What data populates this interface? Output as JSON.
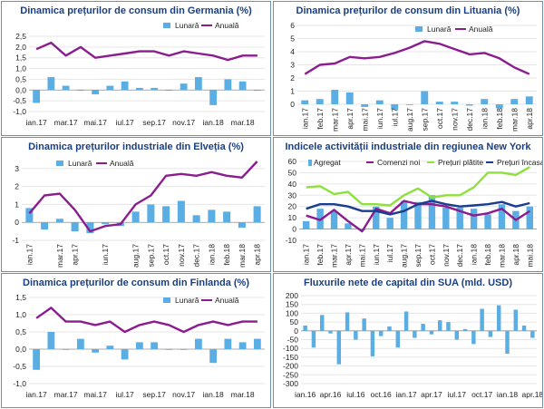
{
  "colors": {
    "bar": "#5aaee3",
    "line": "#8b1d8f",
    "lime": "#8ee03a",
    "navy": "#1a3d8f",
    "title": "#1a3f82"
  },
  "chart_data": [
    {
      "id": "germany",
      "type": "bar+line",
      "title": "Dinamica prețurilor de consum din Germania (%)",
      "ylim": [
        -1.0,
        2.5
      ],
      "yticks": [
        "-1,0",
        "-0,5",
        "0,0",
        "0,5",
        "1,0",
        "1,5",
        "2,0",
        "2,5"
      ],
      "categories": [
        "ian.17",
        "feb.17",
        "mar.17",
        "apr.17",
        "mai.17",
        "iun.17",
        "iul.17",
        "aug.17",
        "sep.17",
        "oct.17",
        "nov.17",
        "dec.17",
        "ian.18",
        "feb.18",
        "mar.18",
        "apr.18"
      ],
      "xlabels": [
        "ian.17",
        "mar.17",
        "mai.17",
        "iul.17",
        "sep.17",
        "nov.17",
        "ian.18",
        "mar.18"
      ],
      "legend_position": "top-right",
      "series": [
        {
          "name": "Lunară",
          "type": "bar",
          "values": [
            -0.6,
            0.6,
            0.2,
            0.0,
            -0.2,
            0.2,
            0.4,
            0.1,
            0.1,
            0.0,
            0.3,
            0.6,
            -0.7,
            0.5,
            0.4,
            0.0
          ]
        },
        {
          "name": "Anuală",
          "type": "line",
          "values": [
            1.9,
            2.2,
            1.6,
            2.0,
            1.5,
            1.6,
            1.7,
            1.8,
            1.8,
            1.6,
            1.8,
            1.7,
            1.6,
            1.4,
            1.6,
            1.6
          ]
        }
      ]
    },
    {
      "id": "lithuania",
      "type": "bar+line",
      "title": "Dinamica prețurilor de consum din Lituania (%)",
      "ylim": [
        0,
        6
      ],
      "yticks": [
        "0",
        "1",
        "2",
        "3",
        "4",
        "5",
        "6"
      ],
      "categories": [
        "ian.17",
        "feb.17",
        "mar.17",
        "apr.17",
        "mai.17",
        "iun.17",
        "iul.17",
        "aug.17",
        "sep.17",
        "oct.17",
        "nov.17",
        "dec.17",
        "ian.18",
        "feb.18",
        "mar.18",
        "apr.18"
      ],
      "xlabels": [
        "ian.17",
        "feb.17",
        "mar.17",
        "apr.17",
        "mai.17",
        "iun.17",
        "iul.17",
        "aug.17",
        "sep.17",
        "oct.17",
        "nov.17",
        "dec.17",
        "ian.18",
        "feb.18",
        "mar.18",
        "apr.18"
      ],
      "xrotate": true,
      "legend_position": "top-right",
      "series": [
        {
          "name": "Lunară",
          "type": "bar",
          "values": [
            0.3,
            0.4,
            1.1,
            0.9,
            -0.2,
            0.3,
            -0.4,
            0.0,
            1.0,
            0.2,
            0.2,
            -0.1,
            0.4,
            -0.3,
            0.4,
            0.6
          ]
        },
        {
          "name": "Anuală",
          "type": "line",
          "values": [
            2.3,
            3.0,
            3.1,
            3.6,
            3.5,
            3.6,
            3.9,
            4.3,
            4.8,
            4.6,
            4.2,
            3.8,
            3.9,
            3.5,
            2.8,
            2.3
          ]
        }
      ]
    },
    {
      "id": "switzerland",
      "type": "bar+line",
      "title": "Dinamica prețurilor industriale din Elveția (%)",
      "ylim": [
        -1,
        3.6
      ],
      "yticks": [
        "-1",
        "0",
        "1",
        "2",
        "3"
      ],
      "categories": [
        "ian.17",
        "feb.17",
        "mar.17",
        "apr.17",
        "mai.17",
        "iun.17",
        "iul.17",
        "aug.17",
        "sep.17",
        "oct.17",
        "nov.17",
        "dec.17",
        "ian.18",
        "feb.18",
        "mar.18",
        "apr.18"
      ],
      "xlabels": [
        "ian.17",
        "mar.17",
        "apr.17",
        "iun.17",
        "aug.17",
        "sep.17",
        "oct.17",
        "nov.17",
        "dec.17",
        "ian.18",
        "feb.18",
        "mar.18",
        "apr.18"
      ],
      "xrotate": true,
      "legend_position": "top-left",
      "series": [
        {
          "name": "Lunară",
          "type": "bar",
          "values": [
            0.8,
            -0.4,
            0.2,
            -0.5,
            -0.6,
            -0.1,
            -0.2,
            0.6,
            1.0,
            0.9,
            1.2,
            0.4,
            0.7,
            0.6,
            -0.3,
            0.9
          ]
        },
        {
          "name": "Anuală",
          "type": "line",
          "values": [
            0.5,
            1.5,
            1.6,
            0.7,
            -0.5,
            -0.2,
            -0.1,
            1.0,
            1.5,
            2.6,
            2.7,
            2.6,
            2.8,
            2.6,
            2.5,
            3.4
          ]
        }
      ]
    },
    {
      "id": "newyork",
      "type": "bar+line",
      "title": "Indicele activității industriale din regiunea New York",
      "ylim": [
        -10,
        60
      ],
      "yticks": [
        "-10",
        "0",
        "10",
        "20",
        "30",
        "40",
        "50",
        "60"
      ],
      "categories": [
        "ian.17",
        "feb.17",
        "mar.17",
        "apr.17",
        "mai.17",
        "iun.17",
        "iul.17",
        "aug.17",
        "sep.17",
        "oct.17",
        "nov.17",
        "dec.17",
        "ian.18",
        "feb.18",
        "mar.18",
        "apr.18",
        "mai.18"
      ],
      "xlabels": [
        "ian.17",
        "feb.17",
        "mar.17",
        "apr.17",
        "mai.17",
        "iun.17",
        "iul.17",
        "aug.17",
        "sep.17",
        "oct.17",
        "nov.17",
        "dec.17",
        "ian.18",
        "feb.18",
        "mar.18",
        "apr.18",
        "mai.18"
      ],
      "xrotate": true,
      "legend_position": "top",
      "series": [
        {
          "name": "Agregat",
          "type": "bar",
          "values": [
            7,
            18,
            16,
            5,
            -1,
            20,
            10,
            25,
            24,
            30,
            19,
            19,
            18,
            13,
            22,
            16,
            20
          ]
        },
        {
          "name": "Comenzi noi",
          "type": "line",
          "values": [
            12,
            8,
            17,
            7,
            -2,
            18,
            14,
            25,
            22,
            22,
            20,
            16,
            12,
            14,
            18,
            8,
            16
          ]
        },
        {
          "name": "Prețuri plătite",
          "type": "line",
          "values": [
            37,
            38,
            31,
            33,
            22,
            22,
            21,
            30,
            36,
            28,
            30,
            30,
            37,
            50,
            50,
            48,
            55
          ]
        },
        {
          "name": "Prețuri încasate",
          "type": "line",
          "values": [
            18,
            22,
            22,
            20,
            16,
            16,
            13,
            16,
            22,
            25,
            22,
            20,
            21,
            22,
            24,
            20,
            23
          ]
        }
      ]
    },
    {
      "id": "finland",
      "type": "bar+line",
      "title": "Dinamica prețurilor de consum din Finlanda (%)",
      "ylim": [
        -1.0,
        1.5
      ],
      "yticks": [
        "-1,0",
        "-0,5",
        "0,0",
        "0,5",
        "1,0",
        "1,5"
      ],
      "categories": [
        "ian.17",
        "feb.17",
        "mar.17",
        "apr.17",
        "mai.17",
        "iun.17",
        "iul.17",
        "aug.17",
        "sep.17",
        "oct.17",
        "nov.17",
        "dec.17",
        "ian.18",
        "feb.18",
        "mar.18",
        "apr.18"
      ],
      "xlabels": [
        "ian.17",
        "mar.17",
        "mai.17",
        "iul.17",
        "sep.17",
        "nov.17",
        "ian.18",
        "mar.18"
      ],
      "legend_position": "top-right",
      "series": [
        {
          "name": "Lunară",
          "type": "bar",
          "values": [
            -0.6,
            0.5,
            0.0,
            0.3,
            -0.1,
            0.1,
            -0.3,
            0.2,
            0.2,
            0.0,
            0.0,
            0.3,
            -0.4,
            0.3,
            0.2,
            0.3
          ]
        },
        {
          "name": "Anuală",
          "type": "line",
          "values": [
            0.9,
            1.2,
            0.8,
            0.8,
            0.7,
            0.8,
            0.5,
            0.7,
            0.8,
            0.7,
            0.5,
            0.7,
            0.8,
            0.7,
            0.8,
            0.8
          ]
        }
      ]
    },
    {
      "id": "usa",
      "type": "bar",
      "title": "Fluxurile nete de capital din SUA (mld. USD)",
      "ylim": [
        -300,
        200
      ],
      "yticks": [
        "-300",
        "-250",
        "-200",
        "-150",
        "-100",
        "-50",
        "0",
        "50",
        "100",
        "150",
        "200"
      ],
      "categories": [
        "ian.16",
        "feb.16",
        "mar.16",
        "apr.16",
        "mai.16",
        "iun.16",
        "iul.16",
        "aug.16",
        "sep.16",
        "oct.16",
        "nov.16",
        "dec.16",
        "ian.17",
        "feb.17",
        "mar.17",
        "apr.17",
        "mai.17",
        "iun.17",
        "iul.17",
        "aug.17",
        "sep.17",
        "oct.17",
        "nov.17",
        "dec.17",
        "ian.18",
        "feb.18",
        "mar.18",
        "apr.18"
      ],
      "xlabels": [
        "ian.16",
        "apr.16",
        "iul.16",
        "oct.16",
        "ian.17",
        "apr.17",
        "iul.17",
        "oct.17",
        "ian.18",
        "apr.18"
      ],
      "series": [
        {
          "name": "Fluxuri nete",
          "type": "bar",
          "values": [
            30,
            -95,
            90,
            -15,
            -190,
            105,
            -50,
            70,
            -145,
            -30,
            25,
            -95,
            110,
            -40,
            40,
            -20,
            60,
            50,
            -50,
            10,
            -75,
            125,
            -35,
            145,
            -130,
            120,
            30,
            -40
          ]
        }
      ]
    }
  ]
}
